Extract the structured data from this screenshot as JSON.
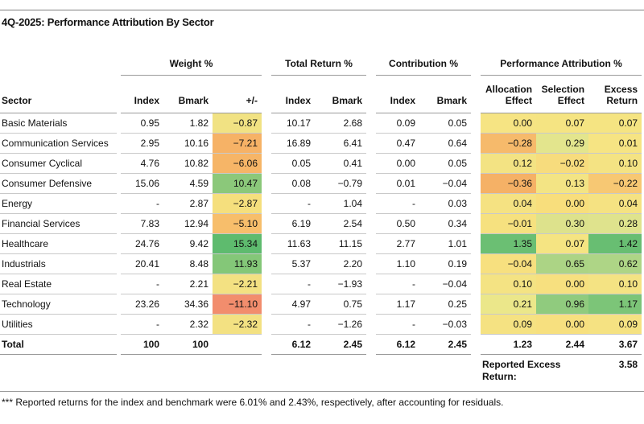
{
  "title": "4Q-2025: Performance Attribution By Sector",
  "groups": {
    "weight": "Weight %",
    "total_return": "Total Return %",
    "contribution": "Contribution %",
    "attribution": "Performance Attribution %"
  },
  "columns": {
    "sector": "Sector",
    "index": "Index",
    "bmark": "Bmark",
    "diff": "+/-"
  },
  "attr_headers": {
    "alloc_l1": "Allocation",
    "alloc_l2": "Effect",
    "sel_l1": "Selection",
    "sel_l2": "Effect",
    "ex_l1": "Excess",
    "ex_l2": "Return"
  },
  "heat_colors": {
    "strong_green": "#5ebb6e",
    "green": "#84c778",
    "yellow": "#f5e282",
    "orange": "#f6b266",
    "red": "#f28d6d"
  },
  "rows": [
    {
      "sector": "Basic Materials",
      "wi": "0.95",
      "wb": "1.82",
      "wd": "−0.87",
      "wd_bg": "#f1e283",
      "tri": "10.17",
      "trb": "2.68",
      "ci": "0.09",
      "cb": "0.05",
      "al": "0.00",
      "al_bg": "#f6e483",
      "se": "0.07",
      "se_bg": "#f5e482",
      "ex": "0.07",
      "ex_bg": "#f5e482"
    },
    {
      "sector": "Communication Services",
      "wi": "2.95",
      "wb": "10.16",
      "wd": "−7.21",
      "wd_bg": "#f6b266",
      "tri": "16.89",
      "trb": "6.41",
      "ci": "0.47",
      "cb": "0.64",
      "al": "−0.28",
      "al_bg": "#f6ba6b",
      "se": "0.29",
      "se_bg": "#e3e58d",
      "ex": "0.01",
      "ex_bg": "#f6e483"
    },
    {
      "sector": "Consumer Cyclical",
      "wi": "4.76",
      "wb": "10.82",
      "wd": "−6.06",
      "wd_bg": "#f6b567",
      "tri": "0.05",
      "trb": "0.41",
      "ci": "0.00",
      "cb": "0.05",
      "al": "0.12",
      "al_bg": "#f3e383",
      "se": "−0.02",
      "se_bg": "#f7dc7d",
      "ex": "0.10",
      "ex_bg": "#f4e383"
    },
    {
      "sector": "Consumer Defensive",
      "wi": "15.06",
      "wb": "4.59",
      "wd": "10.47",
      "wd_bg": "#8bc87a",
      "tri": "0.08",
      "trb": "−0.79",
      "ci": "0.01",
      "cb": "−0.04",
      "al": "−0.36",
      "al_bg": "#f5b166",
      "se": "0.13",
      "se_bg": "#f3e484",
      "ex": "−0.22",
      "ex_bg": "#f7c873"
    },
    {
      "sector": "Energy",
      "wi": "-",
      "wb": "2.87",
      "wd": "−2.87",
      "wd_bg": "#f5df7d",
      "tri": "-",
      "trb": "1.04",
      "ci": "-",
      "cb": "0.03",
      "al": "0.04",
      "al_bg": "#f5e282",
      "se": "0.00",
      "se_bg": "#f8de7c",
      "ex": "0.04",
      "ex_bg": "#f5e282"
    },
    {
      "sector": "Financial Services",
      "wi": "7.83",
      "wb": "12.94",
      "wd": "−5.10",
      "wd_bg": "#f7be6b",
      "tri": "6.19",
      "trb": "2.54",
      "ci": "0.50",
      "cb": "0.34",
      "al": "−0.01",
      "al_bg": "#f6e17f",
      "se": "0.30",
      "se_bg": "#dde28c",
      "ex": "0.28",
      "ex_bg": "#dfe38d"
    },
    {
      "sector": "Healthcare",
      "wi": "24.76",
      "wb": "9.42",
      "wd": "15.34",
      "wd_bg": "#5ebb6e",
      "tri": "11.63",
      "trb": "11.15",
      "ci": "2.77",
      "cb": "1.01",
      "al": "1.35",
      "al_bg": "#6bbf73",
      "se": "0.07",
      "se_bg": "#f5e482",
      "ex": "1.42",
      "ex_bg": "#68be72"
    },
    {
      "sector": "Industrials",
      "wi": "20.41",
      "wb": "8.48",
      "wd": "11.93",
      "wd_bg": "#84c778",
      "tri": "5.37",
      "trb": "2.20",
      "ci": "1.10",
      "cb": "0.19",
      "al": "−0.04",
      "al_bg": "#f7e07f",
      "se": "0.65",
      "se_bg": "#acd485",
      "ex": "0.62",
      "ex_bg": "#aed586"
    },
    {
      "sector": "Real Estate",
      "wi": "-",
      "wb": "2.21",
      "wd": "−2.21",
      "wd_bg": "#f3e182",
      "tri": "-",
      "trb": "−1.93",
      "ci": "-",
      "cb": "−0.04",
      "al": "0.10",
      "al_bg": "#f4e383",
      "se": "0.00",
      "se_bg": "#f7e07f",
      "ex": "0.10",
      "ex_bg": "#f4e383"
    },
    {
      "sector": "Technology",
      "wi": "23.26",
      "wb": "34.36",
      "wd": "−11.10",
      "wd_bg": "#f28d6d",
      "tri": "4.97",
      "trb": "0.75",
      "ci": "1.17",
      "cb": "0.25",
      "al": "0.21",
      "al_bg": "#ebe78a",
      "se": "0.96",
      "se_bg": "#90cb7e",
      "ex": "1.17",
      "ex_bg": "#7cc578"
    },
    {
      "sector": "Utilities",
      "wi": "-",
      "wb": "2.32",
      "wd": "−2.32",
      "wd_bg": "#f3e182",
      "tri": "-",
      "trb": "−1.26",
      "ci": "-",
      "cb": "−0.03",
      "al": "0.09",
      "al_bg": "#f5e282",
      "se": "0.00",
      "se_bg": "#f7e07f",
      "ex": "0.09",
      "ex_bg": "#f5e282"
    }
  ],
  "total": {
    "label": "Total",
    "wi": "100",
    "wb": "100",
    "wd": "",
    "tri": "6.12",
    "trb": "2.45",
    "ci": "6.12",
    "cb": "2.45",
    "al": "1.23",
    "se": "2.44",
    "ex": "3.67"
  },
  "reported_excess": {
    "label": "Reported Excess Return:",
    "value": "3.58"
  },
  "footnote": "*** Reported returns for the index and benchmark were 6.01% and 2.43%, respectively, after accounting for residuals."
}
